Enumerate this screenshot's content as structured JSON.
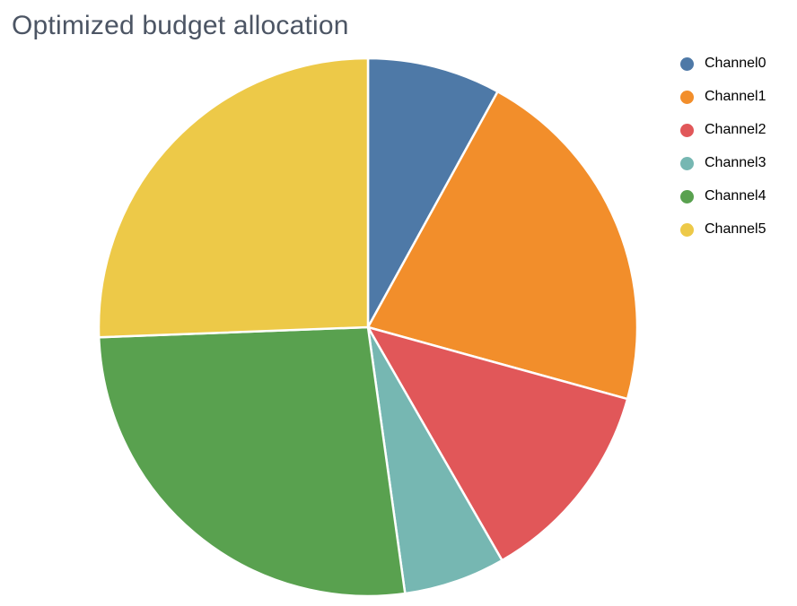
{
  "page": {
    "background": "#ffffff",
    "title_color": "#4c5564"
  },
  "chart_data": {
    "type": "pie",
    "title": "Optimized budget allocation",
    "categories": [
      "Channel0",
      "Channel1",
      "Channel2",
      "Channel3",
      "Channel4",
      "Channel5"
    ],
    "values": [
      8.0,
      21.3,
      12.4,
      6.1,
      26.6,
      25.6
    ],
    "colors": [
      "#4e79a7",
      "#f28e2b",
      "#e15759",
      "#76b7b2",
      "#59a14f",
      "#edc948"
    ],
    "legend_position": "right",
    "legend_marker": "circle",
    "start_angle_deg": 0,
    "direction": "clockwise",
    "slice_gap_color": "#ffffff",
    "xlabel": "",
    "ylabel": ""
  }
}
